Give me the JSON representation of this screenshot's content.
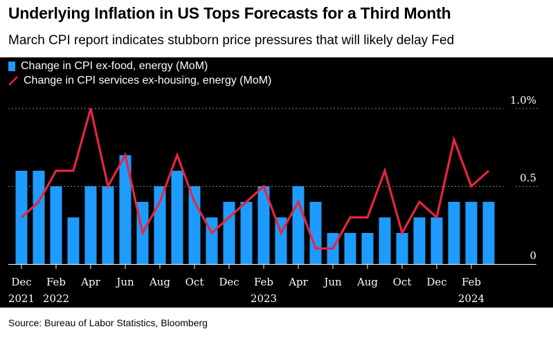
{
  "header": {
    "title": "Underlying Inflation in US Tops Forecasts for a Third Month",
    "subtitle": "March CPI report indicates stubborn price pressures that will likely delay Fed"
  },
  "source": "Source: Bureau of Labor Statistics, Bloomberg",
  "colors": {
    "bar": "#1e9bff",
    "line": "#e8253f",
    "background": "#000000"
  },
  "chart_data": {
    "type": "bar+line",
    "title": "Underlying Inflation in US Tops Forecasts for a Third Month",
    "categories": [
      "Dec 2021",
      "Jan 2022",
      "Feb 2022",
      "Mar 2022",
      "Apr 2022",
      "May 2022",
      "Jun 2022",
      "Jul 2022",
      "Aug 2022",
      "Sep 2022",
      "Oct 2022",
      "Nov 2022",
      "Dec 2022",
      "Jan 2023",
      "Feb 2023",
      "Mar 2023",
      "Apr 2023",
      "May 2023",
      "Jun 2023",
      "Jul 2023",
      "Aug 2023",
      "Sep 2023",
      "Oct 2023",
      "Nov 2023",
      "Dec 2023",
      "Jan 2024",
      "Feb 2024",
      "Mar 2024"
    ],
    "series": [
      {
        "name": "Change in CPI ex-food, energy (MoM)",
        "type": "bar",
        "values": [
          0.6,
          0.6,
          0.5,
          0.3,
          0.5,
          0.5,
          0.7,
          0.4,
          0.5,
          0.6,
          0.5,
          0.3,
          0.4,
          0.4,
          0.5,
          0.3,
          0.5,
          0.4,
          0.2,
          0.2,
          0.2,
          0.3,
          0.2,
          0.3,
          0.3,
          0.4,
          0.4,
          0.4
        ]
      },
      {
        "name": "Change in CPI services ex-housing, energy (MoM)",
        "type": "line",
        "values": [
          0.3,
          0.4,
          0.6,
          0.6,
          1.0,
          0.5,
          0.7,
          0.2,
          0.4,
          0.7,
          0.4,
          0.2,
          0.3,
          0.4,
          0.5,
          0.2,
          0.4,
          0.1,
          0.1,
          0.3,
          0.3,
          0.6,
          0.2,
          0.4,
          0.3,
          0.8,
          0.5,
          0.6
        ]
      }
    ],
    "ylim": [
      0,
      1.0
    ],
    "yticks": [
      {
        "value": 0,
        "label": "0"
      },
      {
        "value": 0.5,
        "label": "0.5"
      },
      {
        "value": 1.0,
        "label": "1.0%"
      }
    ],
    "xticks": [
      {
        "index": 0,
        "label": "Dec",
        "year": "2021"
      },
      {
        "index": 2,
        "label": "Feb",
        "year": "2022"
      },
      {
        "index": 4,
        "label": "Apr",
        "year": ""
      },
      {
        "index": 6,
        "label": "Jun",
        "year": ""
      },
      {
        "index": 8,
        "label": "Aug",
        "year": ""
      },
      {
        "index": 10,
        "label": "Oct",
        "year": ""
      },
      {
        "index": 12,
        "label": "Dec",
        "year": ""
      },
      {
        "index": 14,
        "label": "Feb",
        "year": "2023"
      },
      {
        "index": 16,
        "label": "Apr",
        "year": ""
      },
      {
        "index": 18,
        "label": "Jun",
        "year": ""
      },
      {
        "index": 20,
        "label": "Aug",
        "year": ""
      },
      {
        "index": 22,
        "label": "Oct",
        "year": ""
      },
      {
        "index": 24,
        "label": "Dec",
        "year": ""
      },
      {
        "index": 26,
        "label": "Feb",
        "year": "2024"
      }
    ],
    "legend": "top-left",
    "grid": true
  }
}
